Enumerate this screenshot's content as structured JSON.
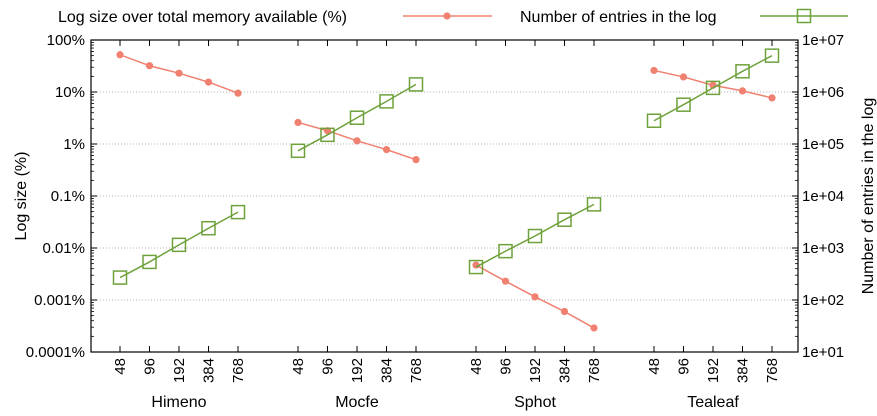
{
  "chart_data": {
    "type": "line",
    "ylabel_left": "Log size (%)",
    "ylabel_right": "Number of entries in the log",
    "y_left_scale": "log",
    "y_right_scale": "log",
    "ylim_left": [
      0.0001,
      100
    ],
    "ylim_right": [
      10,
      10000000
    ],
    "y_left_ticks": [
      "0.0001%",
      "0.001%",
      "0.01%",
      "0.1%",
      "1%",
      "10%",
      "100%"
    ],
    "y_right_ticks": [
      "1e+01",
      "1e+02",
      "1e+03",
      "1e+04",
      "1e+05",
      "1e+06",
      "1e+07"
    ],
    "grid": "horizontal dotted",
    "legend_position": "top",
    "groups": [
      {
        "name": "Himeno",
        "x": [
          "48",
          "96",
          "192",
          "384",
          "768"
        ]
      },
      {
        "name": "Mocfe",
        "x": [
          "48",
          "96",
          "192",
          "384",
          "768"
        ]
      },
      {
        "name": "Sphot",
        "x": [
          "48",
          "96",
          "192",
          "384",
          "768"
        ]
      },
      {
        "name": "Tealeaf",
        "x": [
          "48",
          "96",
          "192",
          "384",
          "768"
        ]
      }
    ],
    "series": [
      {
        "name": "Log size over total memory available (%)",
        "axis": "left",
        "color": "#f08070",
        "marker": "circle",
        "values": [
          [
            52,
            32,
            23,
            15.5,
            9.5
          ],
          [
            2.6,
            1.8,
            1.15,
            0.78,
            0.5
          ],
          [
            0.0047,
            0.0023,
            0.00115,
            0.0006,
            0.00029
          ],
          [
            26,
            19.5,
            13.5,
            10.5,
            7.7
          ]
        ]
      },
      {
        "name": "Number of entries in the log",
        "axis": "right",
        "color": "#6ea13b",
        "marker": "square",
        "values": [
          [
            270,
            540,
            1150,
            2400,
            4900
          ],
          [
            74000,
            150000,
            320000,
            660000,
            1400000
          ],
          [
            430,
            870,
            1700,
            3500,
            6900
          ],
          [
            280000,
            570000,
            1200000,
            2500000,
            5000000
          ]
        ]
      }
    ]
  }
}
